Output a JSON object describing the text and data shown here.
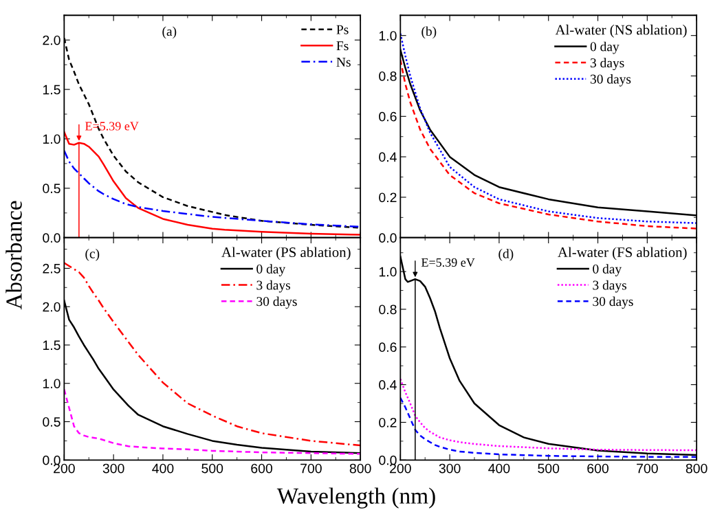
{
  "chart_data": [
    {
      "type": "line",
      "ylabel": "Absorbance",
      "xlim": [
        200,
        800
      ],
      "xticks": [
        200,
        300,
        400,
        500,
        600,
        700,
        800
      ],
      "ylim": [
        0,
        2.25
      ],
      "yticks": [
        {
          "value": 0,
          "label": "0.0"
        },
        0.5,
        {
          "value": 1,
          "label": "1.0"
        },
        1.5,
        {
          "value": 2,
          "label": "2.0"
        }
      ],
      "tick_labels": "y",
      "legend": "top right",
      "annotations": [
        "(a)",
        {
          "text": "E=5.39 eV",
          "x": 230,
          "y": 0.96
        }
      ],
      "x": [
        200,
        210,
        220,
        230,
        240,
        250,
        270,
        280,
        300,
        325,
        350,
        400,
        450,
        500,
        525,
        600,
        700,
        800
      ],
      "ref_lines": [
        {
          "axis": "x",
          "value": 230,
          "color": "#ff0000"
        }
      ],
      "series": [
        {
          "name": "Ps",
          "color": "#000000",
          "line_style": "dashed",
          "values": [
            2.02,
            1.8,
            1.68,
            1.55,
            1.45,
            1.35,
            1.1,
            1.0,
            0.83,
            0.67,
            0.56,
            0.41,
            0.32,
            0.26,
            0.23,
            0.17,
            0.13,
            0.1
          ]
        },
        {
          "name": "Fs",
          "color": "#ff0000",
          "line_style": "solid",
          "values": [
            1.07,
            0.95,
            0.94,
            0.96,
            0.95,
            0.92,
            0.82,
            0.74,
            0.57,
            0.4,
            0.3,
            0.19,
            0.13,
            0.09,
            0.08,
            0.06,
            0.04,
            0.03
          ]
        },
        {
          "name": "Ns",
          "color": "#0000ff",
          "line_style": "dashdot",
          "values": [
            0.88,
            0.77,
            0.7,
            0.65,
            0.6,
            0.55,
            0.47,
            0.44,
            0.39,
            0.34,
            0.31,
            0.27,
            0.24,
            0.21,
            0.2,
            0.17,
            0.135,
            0.11
          ]
        }
      ]
    },
    {
      "type": "line",
      "xlim": [
        200,
        800
      ],
      "xticks": [
        200,
        300,
        400,
        500,
        600,
        700,
        800
      ],
      "ylim": [
        0,
        1.1
      ],
      "yticks": [
        {
          "value": 0,
          "label": "0.0"
        },
        0.2,
        0.4,
        0.6,
        0.8,
        {
          "value": 1,
          "label": "1.0"
        }
      ],
      "tick_labels": "y",
      "legend": "top right",
      "legend_title": "Al-water (NS ablation)",
      "annotations": [
        "(b)"
      ],
      "x": [
        200,
        210,
        220,
        240,
        260,
        300,
        350,
        400,
        500,
        600,
        700,
        800
      ],
      "series": [
        {
          "name": "0 day",
          "color": "#000000",
          "line_style": "solid",
          "values": [
            0.93,
            0.84,
            0.76,
            0.63,
            0.535,
            0.4,
            0.31,
            0.25,
            0.19,
            0.15,
            0.13,
            0.11
          ]
        },
        {
          "name": "3 days",
          "color": "#ff0000",
          "line_style": "dashed",
          "values": [
            0.88,
            0.76,
            0.67,
            0.535,
            0.44,
            0.31,
            0.22,
            0.17,
            0.115,
            0.08,
            0.057,
            0.045
          ]
        },
        {
          "name": "30 days",
          "color": "#0000ff",
          "line_style": "dotted",
          "values": [
            1.01,
            0.9,
            0.8,
            0.64,
            0.52,
            0.35,
            0.25,
            0.19,
            0.13,
            0.097,
            0.08,
            0.072
          ]
        }
      ]
    },
    {
      "type": "line",
      "xlabel": "Wavelength (nm)",
      "xlim": [
        200,
        800
      ],
      "xticks": [
        200,
        300,
        400,
        500,
        600,
        700,
        800
      ],
      "ylim": [
        0,
        2.9
      ],
      "yticks": [
        {
          "value": 0,
          "label": "0.0"
        },
        0.5,
        {
          "value": 1,
          "label": "1.0"
        },
        1.5,
        {
          "value": 2,
          "label": "2.0"
        },
        2.5
      ],
      "legend": "top right",
      "legend_title": "Al-water (PS ablation)",
      "annotations": [
        "(c)"
      ],
      "x": [
        200,
        210,
        220,
        230,
        240,
        250,
        260,
        270,
        280,
        300,
        330,
        350,
        400,
        450,
        500,
        550,
        600,
        700,
        800
      ],
      "series": [
        {
          "name": "0 day",
          "color": "#000000",
          "line_style": "solid",
          "values": [
            2.08,
            1.83,
            1.73,
            1.61,
            1.5,
            1.4,
            1.3,
            1.19,
            1.1,
            0.92,
            0.71,
            0.59,
            0.44,
            0.34,
            0.25,
            0.2,
            0.16,
            0.11,
            0.09
          ]
        },
        {
          "name": "3 days",
          "color": "#ff0000",
          "line_style": "dashdot",
          "values": [
            2.57,
            2.53,
            2.49,
            2.45,
            2.38,
            2.27,
            2.17,
            2.08,
            1.98,
            1.8,
            1.54,
            1.37,
            1.01,
            0.74,
            0.58,
            0.44,
            0.35,
            0.25,
            0.19
          ]
        },
        {
          "name": "30 days",
          "color": "#ff00ff",
          "line_style": "dashed",
          "values": [
            0.92,
            0.68,
            0.44,
            0.35,
            0.32,
            0.3,
            0.29,
            0.28,
            0.26,
            0.22,
            0.18,
            0.17,
            0.15,
            0.14,
            0.12,
            0.11,
            0.1,
            0.09,
            0.08
          ]
        }
      ]
    },
    {
      "type": "line",
      "xlim": [
        200,
        800
      ],
      "xticks": [
        200,
        300,
        400,
        500,
        600,
        700,
        800
      ],
      "ylim": [
        0,
        1.18
      ],
      "yticks": [
        {
          "value": 0,
          "label": "0.0"
        },
        0.2,
        0.4,
        0.6,
        0.8,
        {
          "value": 1,
          "label": "1.0"
        }
      ],
      "legend": "top right",
      "legend_title": "Al-water (FS ablation)",
      "annotations": [
        "(d)",
        {
          "text": "E=5.39 eV",
          "x": 230,
          "y": 0.96
        }
      ],
      "x": [
        200,
        210,
        215,
        220,
        230,
        240,
        250,
        260,
        270,
        280,
        300,
        320,
        350,
        400,
        450,
        500,
        600,
        700,
        800
      ],
      "ref_lines": [
        {
          "axis": "x",
          "value": 230,
          "color": "#000000"
        }
      ],
      "series": [
        {
          "name": "0 day",
          "color": "#000000",
          "line_style": "solid",
          "values": [
            1.08,
            0.96,
            0.945,
            0.95,
            0.96,
            0.95,
            0.92,
            0.86,
            0.79,
            0.7,
            0.54,
            0.42,
            0.3,
            0.185,
            0.12,
            0.086,
            0.05,
            0.035,
            0.027
          ]
        },
        {
          "name": "3 days",
          "color": "#ff00ff",
          "line_style": "dotted",
          "values": [
            0.43,
            0.36,
            0.33,
            0.3,
            0.235,
            0.2,
            0.17,
            0.15,
            0.135,
            0.12,
            0.105,
            0.095,
            0.085,
            0.074,
            0.068,
            0.062,
            0.055,
            0.053,
            0.052
          ]
        },
        {
          "name": "30 days",
          "color": "#0000ff",
          "line_style": "dashed",
          "values": [
            0.33,
            0.28,
            0.25,
            0.22,
            0.16,
            0.13,
            0.11,
            0.095,
            0.08,
            0.07,
            0.055,
            0.045,
            0.038,
            0.03,
            0.026,
            0.022,
            0.019,
            0.017,
            0.016
          ]
        }
      ]
    }
  ]
}
